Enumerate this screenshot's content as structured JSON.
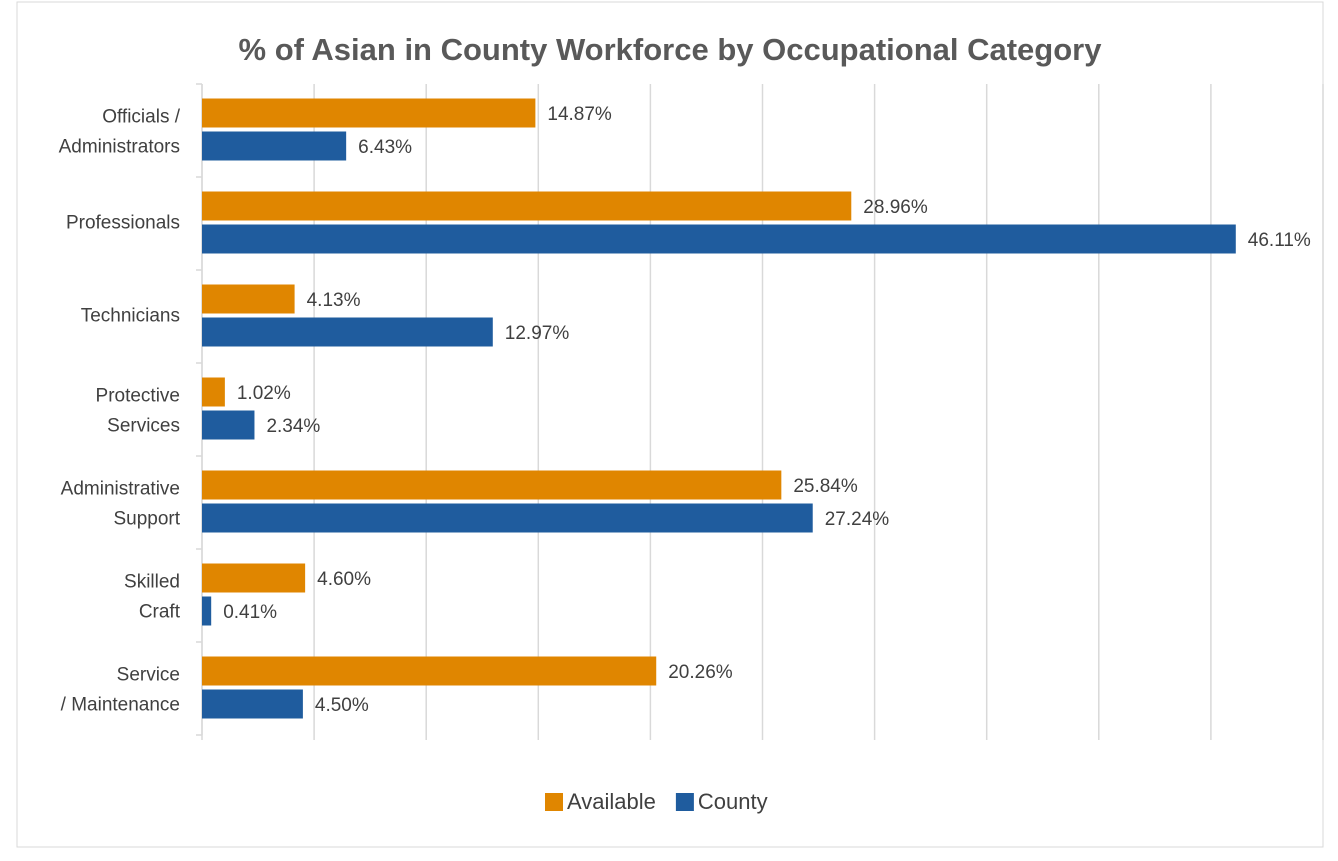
{
  "chart_data": {
    "type": "barh",
    "title": "% of Asian in County Workforce by Occupational Category",
    "categories": [
      "Officials / Administrators",
      "Professionals",
      "Technicians",
      "Protective Services",
      "Administrative Support",
      "Skilled Craft",
      "Service / Maintenance"
    ],
    "series": [
      {
        "name": "Available",
        "color": "#e08600",
        "values": [
          14.87,
          28.96,
          4.13,
          1.02,
          25.84,
          4.6,
          20.26
        ],
        "value_labels": [
          "14.87%",
          "28.96%",
          "4.13%",
          "1.02%",
          "25.84%",
          "4.60%",
          "20.26%"
        ]
      },
      {
        "name": "County",
        "color": "#1f5c9e",
        "values": [
          6.43,
          46.11,
          12.97,
          2.34,
          27.24,
          0.41,
          4.5
        ],
        "value_labels": [
          "6.43%",
          "46.11%",
          "12.97%",
          "2.34%",
          "27.24%",
          "0.41%",
          "4.50%"
        ]
      }
    ],
    "xlim": [
      0,
      50
    ],
    "xticks": [
      0,
      5,
      10,
      15,
      20,
      25,
      30,
      35,
      40,
      45,
      50
    ],
    "grid": true,
    "legend": "bottom"
  }
}
